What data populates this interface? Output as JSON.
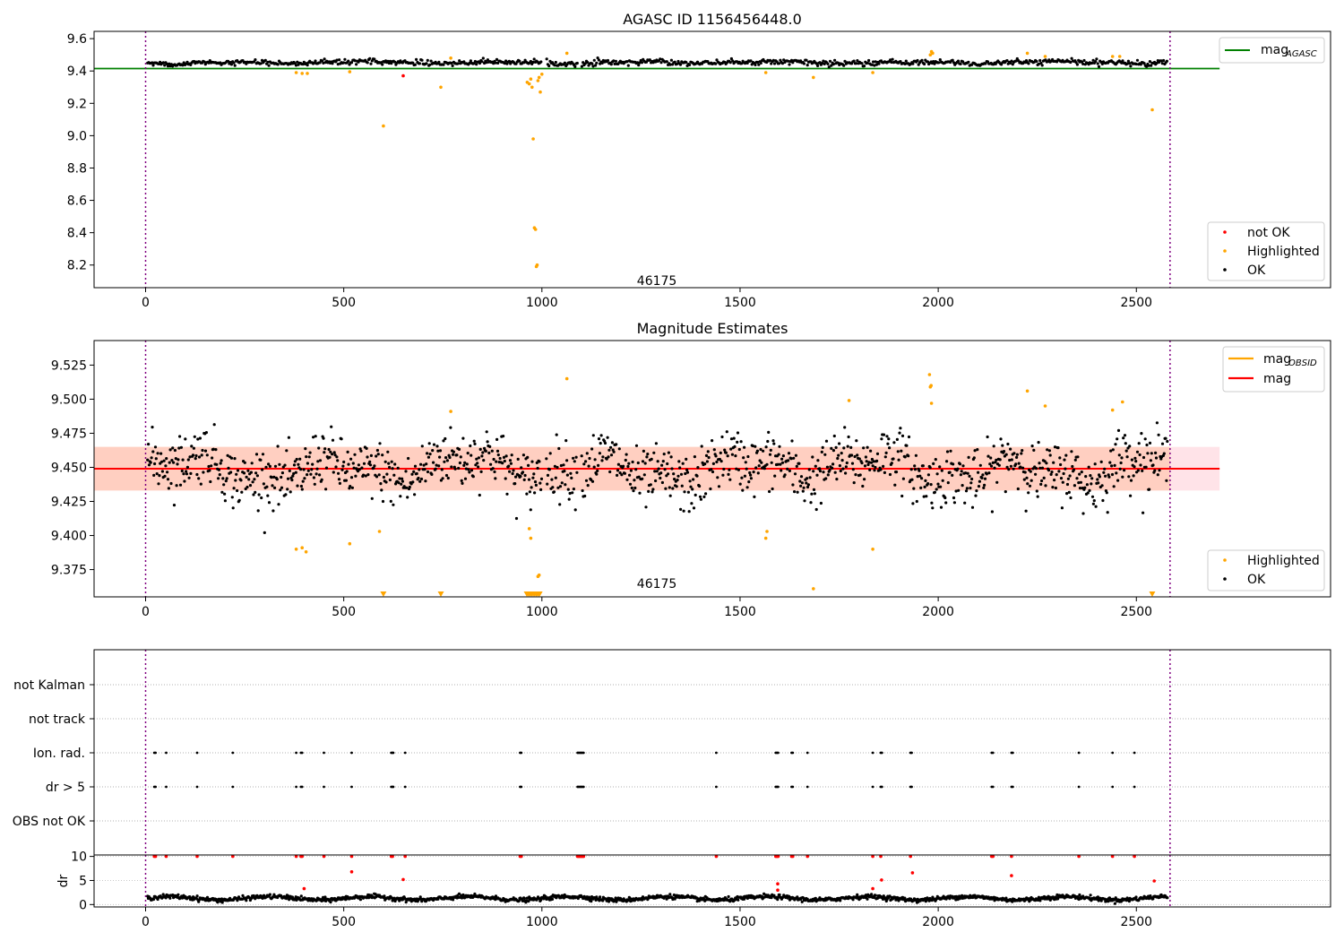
{
  "chart_data": [
    {
      "id": "panel-1",
      "type": "scatter",
      "title": "AGASC ID 1156456448.0",
      "xlim": [
        -130,
        2990
      ],
      "ylim": [
        8.06,
        9.645
      ],
      "xticks": [
        0,
        500,
        1000,
        1500,
        2000,
        2500
      ],
      "yticks": [
        8.2,
        8.4,
        8.6,
        8.8,
        9.0,
        9.2,
        9.4,
        9.6
      ],
      "ytick_labels": [
        "8.2",
        "8.4",
        "8.6",
        "8.8",
        "9.0",
        "9.2",
        "9.4",
        "9.6"
      ],
      "obs_boundaries": [
        0,
        2585
      ],
      "annotation": {
        "text": "46175",
        "x": 1290,
        "y": 8.1
      },
      "reference_line": {
        "name": "mag",
        "subscript": "AGASC",
        "y": 9.415,
        "x_range": [
          -130,
          2710
        ],
        "color": "#008000"
      },
      "trend": {
        "center": 9.452,
        "spread": 0.012
      },
      "legend": {
        "lines": [
          {
            "name": "mag",
            "subscript": "AGASC",
            "color": "#008000"
          }
        ],
        "markers": [
          {
            "name": "not OK",
            "color": "#ff0000"
          },
          {
            "name": "Highlighted",
            "color": "#ffa500"
          },
          {
            "name": "OK",
            "color": "#000000"
          }
        ],
        "placement": "right"
      },
      "series": [
        {
          "name": "Highlighted",
          "color": "#ffa500",
          "points": [
            [
              380,
              9.39
            ],
            [
              395,
              9.385
            ],
            [
              408,
              9.385
            ],
            [
              515,
              9.395
            ],
            [
              600,
              9.06
            ],
            [
              745,
              9.3
            ],
            [
              770,
              9.48
            ],
            [
              963,
              9.33
            ],
            [
              968,
              9.32
            ],
            [
              972,
              9.35
            ],
            [
              975,
              9.3
            ],
            [
              978,
              8.98
            ],
            [
              981,
              8.43
            ],
            [
              984,
              8.42
            ],
            [
              986,
              8.19
            ],
            [
              988,
              8.2
            ],
            [
              990,
              9.34
            ],
            [
              993,
              9.36
            ],
            [
              996,
              9.27
            ],
            [
              1000,
              9.38
            ],
            [
              1063,
              9.51
            ],
            [
              1565,
              9.39
            ],
            [
              1685,
              9.36
            ],
            [
              1835,
              9.39
            ],
            [
              1980,
              9.5
            ],
            [
              1983,
              9.52
            ],
            [
              1986,
              9.51
            ],
            [
              2225,
              9.51
            ],
            [
              2270,
              9.49
            ],
            [
              2440,
              9.49
            ],
            [
              2458,
              9.49
            ],
            [
              2540,
              9.16
            ]
          ]
        },
        {
          "name": "not OK",
          "color": "#ff0000",
          "points": [
            [
              650,
              9.37
            ]
          ]
        }
      ]
    },
    {
      "id": "panel-2",
      "type": "scatter",
      "title": "Magnitude Estimates",
      "xlim": [
        -130,
        2990
      ],
      "ylim": [
        9.355,
        9.543
      ],
      "xticks": [
        0,
        500,
        1000,
        1500,
        2000,
        2500
      ],
      "yticks": [
        9.375,
        9.4,
        9.425,
        9.45,
        9.475,
        9.5,
        9.525
      ],
      "ytick_labels": [
        "9.375",
        "9.400",
        "9.425",
        "9.450",
        "9.475",
        "9.500",
        "9.525"
      ],
      "obs_boundaries": [
        0,
        2585
      ],
      "annotation": {
        "text": "46175",
        "x": 1290,
        "y": 9.359
      },
      "mean_line": {
        "name": "mag",
        "y": 9.449,
        "x_range": [
          -130,
          2710
        ],
        "color": "#ff0000"
      },
      "bands": [
        {
          "x_range": [
            -130,
            2710
          ],
          "y_range": [
            9.433,
            9.465
          ],
          "color": "#ffc0cb"
        },
        {
          "x_range": [
            -130,
            2585
          ],
          "y_range": [
            9.433,
            9.465
          ],
          "color": "#ffc0a0"
        }
      ],
      "trend": {
        "center": 9.449,
        "spread": 0.016
      },
      "legend": {
        "lines": [
          {
            "name": "mag",
            "subscript": "OBSID",
            "color": "#ffa500"
          },
          {
            "name": "mag",
            "color": "#ff0000"
          }
        ],
        "markers": [
          {
            "name": "Highlighted",
            "color": "#ffa500"
          },
          {
            "name": "OK",
            "color": "#000000"
          }
        ],
        "placement": "right"
      },
      "series": [
        {
          "name": "Highlighted",
          "color": "#ffa500",
          "points": [
            [
              380,
              9.39
            ],
            [
              395,
              9.391
            ],
            [
              405,
              9.388
            ],
            [
              515,
              9.394
            ],
            [
              590,
              9.403
            ],
            [
              770,
              9.491
            ],
            [
              968,
              9.405
            ],
            [
              972,
              9.398
            ],
            [
              990,
              9.37
            ],
            [
              993,
              9.371
            ],
            [
              1063,
              9.515
            ],
            [
              1565,
              9.398
            ],
            [
              1568,
              9.403
            ],
            [
              1685,
              9.361
            ],
            [
              1775,
              9.499
            ],
            [
              1835,
              9.39
            ],
            [
              1978,
              9.518
            ],
            [
              1980,
              9.509
            ],
            [
              1982,
              9.51
            ],
            [
              1983,
              9.497
            ],
            [
              2225,
              9.506
            ],
            [
              2270,
              9.495
            ],
            [
              2440,
              9.492
            ],
            [
              2465,
              9.498
            ]
          ]
        },
        {
          "name": "Highlighted (off scale)",
          "color": "#ffa500",
          "points": [
            [
              600,
              9.357
            ],
            [
              745,
              9.357
            ],
            [
              962,
              9.357
            ],
            [
              966,
              9.357
            ],
            [
              970,
              9.357
            ],
            [
              974,
              9.357
            ],
            [
              978,
              9.357
            ],
            [
              982,
              9.357
            ],
            [
              986,
              9.357
            ],
            [
              990,
              9.357
            ],
            [
              994,
              9.357
            ],
            [
              2540,
              9.357
            ]
          ]
        }
      ]
    },
    {
      "id": "panel-3",
      "type": "scatter",
      "xlim": [
        -130,
        2990
      ],
      "yticks": [
        "not Kalman",
        "not track",
        "Ion. rad.",
        "dr > 5",
        "OBS not OK"
      ],
      "obs_boundaries": [
        0,
        2585
      ],
      "flag_times": [
        22,
        25,
        52,
        130,
        220,
        380,
        392,
        395,
        450,
        520,
        620,
        623,
        625,
        655,
        945,
        948,
        1090,
        1093,
        1096,
        1099,
        1102,
        1105,
        1440,
        1590,
        1593,
        1596,
        1630,
        1633,
        1670,
        1835,
        1855,
        1858,
        1930,
        1933,
        2135,
        2138,
        2185,
        2188,
        2355,
        2440,
        2495
      ]
    },
    {
      "id": "panel-4",
      "type": "scatter",
      "ylabel": "dr",
      "xlim": [
        -130,
        2990
      ],
      "ylim": [
        -0.5,
        10.3
      ],
      "xticks": [
        0,
        500,
        1000,
        1500,
        2000,
        2500
      ],
      "yticks": [
        0,
        5,
        10
      ],
      "ytick_labels": [
        "0",
        "5",
        "10"
      ],
      "obs_boundaries": [
        0,
        2585
      ],
      "trend": {
        "center": 1.3,
        "spread": 0.45
      },
      "series": [
        {
          "name": "dr > 5",
          "color": "#ff0000",
          "points": [
            [
              22,
              10
            ],
            [
              25,
              10
            ],
            [
              52,
              10
            ],
            [
              130,
              10
            ],
            [
              220,
              10
            ],
            [
              380,
              10
            ],
            [
              392,
              10
            ],
            [
              395,
              10
            ],
            [
              450,
              10
            ],
            [
              520,
              10
            ],
            [
              620,
              10
            ],
            [
              623,
              10
            ],
            [
              655,
              10
            ],
            [
              945,
              10
            ],
            [
              948,
              10
            ],
            [
              1090,
              10
            ],
            [
              1093,
              10
            ],
            [
              1096,
              10
            ],
            [
              1099,
              10
            ],
            [
              1102,
              10
            ],
            [
              1105,
              10
            ],
            [
              1440,
              10
            ],
            [
              1590,
              10
            ],
            [
              1593,
              10
            ],
            [
              1596,
              10
            ],
            [
              1630,
              10
            ],
            [
              1633,
              10
            ],
            [
              1670,
              10
            ],
            [
              1835,
              10
            ],
            [
              1855,
              10
            ],
            [
              1930,
              10
            ],
            [
              2135,
              10
            ],
            [
              2138,
              10
            ],
            [
              2185,
              10
            ],
            [
              2355,
              10
            ],
            [
              2440,
              10
            ],
            [
              2495,
              10
            ],
            [
              520,
              6.8
            ],
            [
              650,
              5.2
            ],
            [
              400,
              3.3
            ],
            [
              1595,
              4.3
            ],
            [
              1595,
              3.0
            ],
            [
              1835,
              3.3
            ],
            [
              1857,
              5.1
            ],
            [
              1935,
              6.6
            ],
            [
              2185,
              6.0
            ],
            [
              2545,
              4.9
            ]
          ]
        }
      ]
    }
  ]
}
